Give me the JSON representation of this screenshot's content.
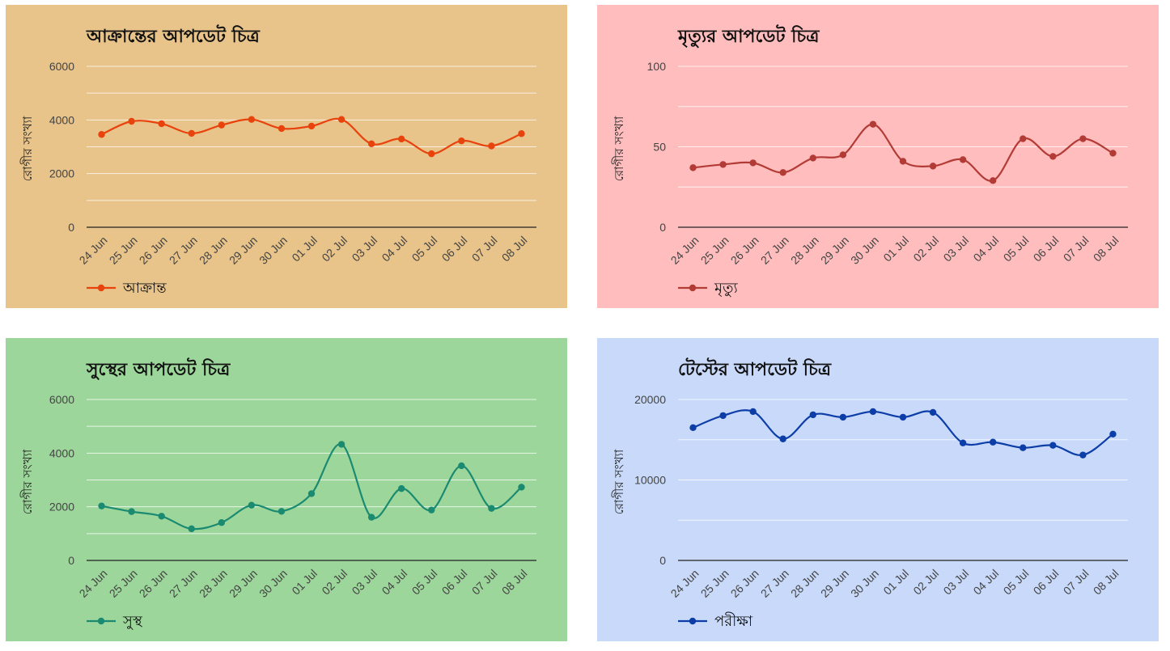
{
  "chart_data": [
    {
      "type": "line",
      "title": "আক্রান্তের আপডেট চিত্র",
      "ylabel": "রোগীর সংখ্যা",
      "categories": [
        "24 Jun",
        "25 Jun",
        "26 Jun",
        "27 Jun",
        "28 Jun",
        "29 Jun",
        "30 Jun",
        "01 Jul",
        "02 Jul",
        "03 Jul",
        "04 Jul",
        "05 Jul",
        "06 Jul",
        "07 Jul",
        "08 Jul"
      ],
      "yticks": [
        "6000",
        "4000",
        "2000",
        "0"
      ],
      "ylim": [
        0,
        6000
      ],
      "gridlines": [
        0,
        1000,
        2000,
        3000,
        4000,
        5000,
        6000
      ],
      "series": [
        {
          "name": "আক্রান্ত",
          "values": [
            3460,
            3950,
            3860,
            3500,
            3810,
            4020,
            3680,
            3770,
            4020,
            3110,
            3290,
            2740,
            3220,
            3030,
            3490
          ]
        }
      ],
      "colors": {
        "background": "#e8c38a",
        "line": "#e8430c"
      },
      "legend": "bottom-left"
    },
    {
      "type": "line",
      "title": "মৃত্যুর আপডেট চিত্র",
      "ylabel": "রোগীর সংখ্যা",
      "categories": [
        "24 Jun",
        "25 Jun",
        "26 Jun",
        "27 Jun",
        "28 Jun",
        "29 Jun",
        "30 Jun",
        "01 Jul",
        "02 Jul",
        "03 Jul",
        "04 Jul",
        "05 Jul",
        "06 Jul",
        "07 Jul",
        "08 Jul"
      ],
      "yticks": [
        "100",
        "50",
        "0"
      ],
      "ylim": [
        0,
        100
      ],
      "gridlines": [
        0,
        25,
        50,
        75,
        100
      ],
      "series": [
        {
          "name": "মৃত্যু",
          "values": [
            37,
            39,
            40,
            34,
            43,
            45,
            64,
            41,
            38,
            42,
            29,
            55,
            44,
            55,
            46
          ]
        }
      ],
      "colors": {
        "background": "#ffbdbd",
        "line": "#b33b36"
      },
      "legend": "bottom-left"
    },
    {
      "type": "line",
      "title": "সুস্থের আপডেট চিত্র",
      "ylabel": "রোগীর সংখ্যা",
      "categories": [
        "24 Jun",
        "25 Jun",
        "26 Jun",
        "27 Jun",
        "28 Jun",
        "29 Jun",
        "30 Jun",
        "01 Jul",
        "02 Jul",
        "03 Jul",
        "04 Jul",
        "05 Jul",
        "06 Jul",
        "07 Jul",
        "08 Jul"
      ],
      "yticks": [
        "6000",
        "4000",
        "2000",
        "0"
      ],
      "ylim": [
        0,
        6000
      ],
      "gridlines": [
        0,
        1000,
        2000,
        3000,
        4000,
        5000,
        6000
      ],
      "series": [
        {
          "name": "সুস্থ",
          "values": [
            2030,
            1820,
            1650,
            1180,
            1410,
            2060,
            1830,
            2490,
            4330,
            1610,
            2680,
            1880,
            3530,
            1940,
            2730
          ]
        }
      ],
      "colors": {
        "background": "#9dd69b",
        "line": "#1a8a70"
      },
      "legend": "bottom-left"
    },
    {
      "type": "line",
      "title": "টেস্টের আপডেট চিত্র",
      "ylabel": "রোগীর সংখ্যা",
      "categories": [
        "24 Jun",
        "25 Jun",
        "26 Jun",
        "27 Jun",
        "28 Jun",
        "29 Jun",
        "30 Jun",
        "01 Jul",
        "02 Jul",
        "03 Jul",
        "04 Jul",
        "05 Jul",
        "06 Jul",
        "07 Jul",
        "08 Jul"
      ],
      "yticks": [
        "20000",
        "10000",
        "0"
      ],
      "ylim": [
        0,
        20000
      ],
      "gridlines": [
        0,
        5000,
        10000,
        15000,
        20000
      ],
      "series": [
        {
          "name": "পরীক্ষা",
          "values": [
            16500,
            18000,
            18500,
            15100,
            18100,
            17800,
            18500,
            17800,
            18400,
            14600,
            14700,
            14000,
            14300,
            13100,
            15700
          ]
        }
      ],
      "colors": {
        "background": "#c8d9fa",
        "line": "#0d3ea8"
      },
      "legend": "bottom-left"
    }
  ]
}
